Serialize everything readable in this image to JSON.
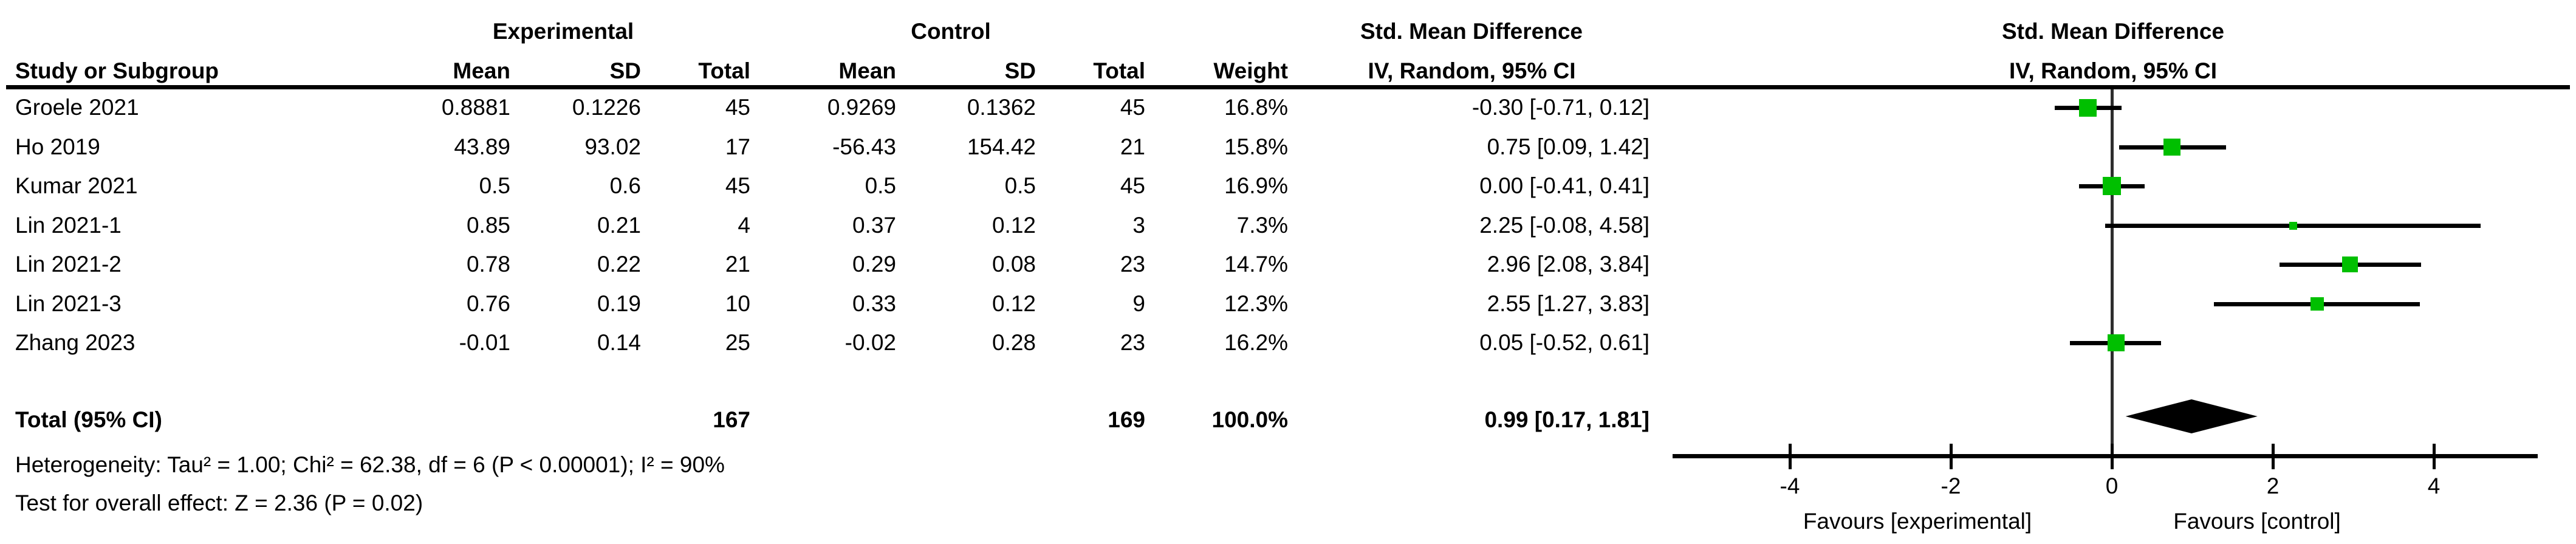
{
  "chart_data": {
    "type": "forest",
    "effect_measure": "Std. Mean Difference",
    "method_label": "IV, Random, 95% CI",
    "group_headers": {
      "experimental": "Experimental",
      "control": "Control",
      "smd_text_col": "Std. Mean Difference",
      "smd_plot_col": "Std. Mean Difference"
    },
    "column_headers": {
      "study": "Study or Subgroup",
      "mean_e": "Mean",
      "sd_e": "SD",
      "total_e": "Total",
      "mean_c": "Mean",
      "sd_c": "SD",
      "total_c": "Total",
      "weight": "Weight",
      "ci_text": "IV, Random, 95% CI",
      "ci_plot": "IV, Random, 95% CI"
    },
    "studies": [
      {
        "name": "Groele 2021",
        "mean_e": "0.8881",
        "sd_e": "0.1226",
        "total_e": "45",
        "mean_c": "0.9269",
        "sd_c": "0.1362",
        "total_c": "45",
        "weight": "16.8%",
        "ci_text": "-0.30 [-0.71, 0.12]",
        "smd": -0.3,
        "lo": -0.71,
        "hi": 0.12,
        "weight_pct": 16.8
      },
      {
        "name": "Ho 2019",
        "mean_e": "43.89",
        "sd_e": "93.02",
        "total_e": "17",
        "mean_c": "-56.43",
        "sd_c": "154.42",
        "total_c": "21",
        "weight": "15.8%",
        "ci_text": "0.75 [0.09, 1.42]",
        "smd": 0.75,
        "lo": 0.09,
        "hi": 1.42,
        "weight_pct": 15.8
      },
      {
        "name": "Kumar 2021",
        "mean_e": "0.5",
        "sd_e": "0.6",
        "total_e": "45",
        "mean_c": "0.5",
        "sd_c": "0.5",
        "total_c": "45",
        "weight": "16.9%",
        "ci_text": "0.00 [-0.41, 0.41]",
        "smd": 0.0,
        "lo": -0.41,
        "hi": 0.41,
        "weight_pct": 16.9
      },
      {
        "name": "Lin 2021-1",
        "mean_e": "0.85",
        "sd_e": "0.21",
        "total_e": "4",
        "mean_c": "0.37",
        "sd_c": "0.12",
        "total_c": "3",
        "weight": "7.3%",
        "ci_text": "2.25 [-0.08, 4.58]",
        "smd": 2.25,
        "lo": -0.08,
        "hi": 4.58,
        "weight_pct": 7.3
      },
      {
        "name": "Lin 2021-2",
        "mean_e": "0.78",
        "sd_e": "0.22",
        "total_e": "21",
        "mean_c": "0.29",
        "sd_c": "0.08",
        "total_c": "23",
        "weight": "14.7%",
        "ci_text": "2.96 [2.08, 3.84]",
        "smd": 2.96,
        "lo": 2.08,
        "hi": 3.84,
        "weight_pct": 14.7
      },
      {
        "name": "Lin 2021-3",
        "mean_e": "0.76",
        "sd_e": "0.19",
        "total_e": "10",
        "mean_c": "0.33",
        "sd_c": "0.12",
        "total_c": "9",
        "weight": "12.3%",
        "ci_text": "2.55 [1.27, 3.83]",
        "smd": 2.55,
        "lo": 1.27,
        "hi": 3.83,
        "weight_pct": 12.3
      },
      {
        "name": "Zhang 2023",
        "mean_e": "-0.01",
        "sd_e": "0.14",
        "total_e": "25",
        "mean_c": "-0.02",
        "sd_c": "0.28",
        "total_c": "23",
        "weight": "16.2%",
        "ci_text": "0.05 [-0.52, 0.61]",
        "smd": 0.05,
        "lo": -0.52,
        "hi": 0.61,
        "weight_pct": 16.2
      }
    ],
    "total": {
      "label": "Total (95% CI)",
      "total_e": "167",
      "total_c": "169",
      "weight": "100.0%",
      "ci_text": "0.99 [0.17, 1.81]",
      "smd": 0.99,
      "lo": 0.17,
      "hi": 1.81
    },
    "footnotes": {
      "heterogeneity": "Heterogeneity: Tau² = 1.00; Chi² = 62.38, df = 6 (P < 0.00001); I² = 90%",
      "overall_effect": "Test for overall effect: Z = 2.36 (P = 0.02)"
    },
    "axis": {
      "ticks": [
        -4,
        -2,
        0,
        2,
        4
      ],
      "tick_labels": [
        "-4",
        "-2",
        "0",
        "2",
        "4"
      ],
      "xmin": -5.45,
      "xmax": 5.3,
      "favours_left": "Favours [experimental]",
      "favours_right": "Favours [control]"
    },
    "colors": {
      "marker_green": "#00bf00",
      "diamond_black": "#000000",
      "line_black": "#000000"
    }
  }
}
